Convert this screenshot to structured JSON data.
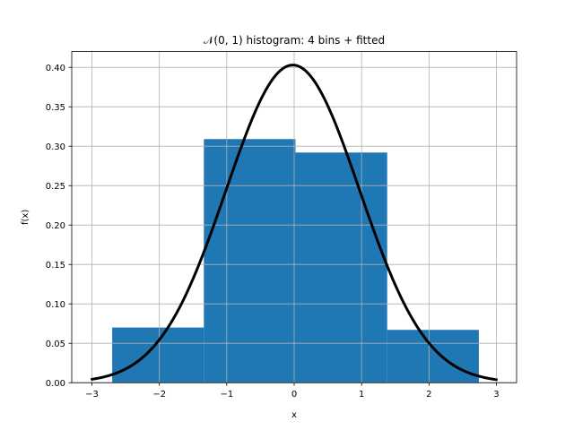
{
  "chart_data": {
    "type": "bar",
    "title": "𝒩(0, 1) histogram: 4 bins + fitted",
    "xlabel": "x",
    "ylabel": "f(x)",
    "xlim": [
      -3.3,
      3.3
    ],
    "ylim": [
      0.0,
      0.42
    ],
    "grid": true,
    "xticks": [
      -3,
      -2,
      -1,
      0,
      1,
      2,
      3
    ],
    "xtick_labels": [
      "−3",
      "−2",
      "−1",
      "0",
      "1",
      "2",
      "3"
    ],
    "yticks": [
      0.0,
      0.05,
      0.1,
      0.15,
      0.2,
      0.25,
      0.3,
      0.35,
      0.4
    ],
    "ytick_labels": [
      "0.00",
      "0.05",
      "0.10",
      "0.15",
      "0.20",
      "0.25",
      "0.30",
      "0.35",
      "0.40"
    ],
    "histogram": {
      "color": "#1f77b4",
      "bins": [
        {
          "start": -2.7,
          "end": -1.34,
          "density": 0.07
        },
        {
          "start": -1.34,
          "end": 0.02,
          "density": 0.309
        },
        {
          "start": 0.02,
          "end": 1.38,
          "density": 0.292
        },
        {
          "start": 1.38,
          "end": 2.74,
          "density": 0.067
        }
      ]
    },
    "fitted_curve": {
      "type": "line",
      "distribution": "normal",
      "mean": -0.02,
      "std": 0.99,
      "x_range": [
        -3.0,
        3.0
      ],
      "color": "#000000"
    }
  }
}
